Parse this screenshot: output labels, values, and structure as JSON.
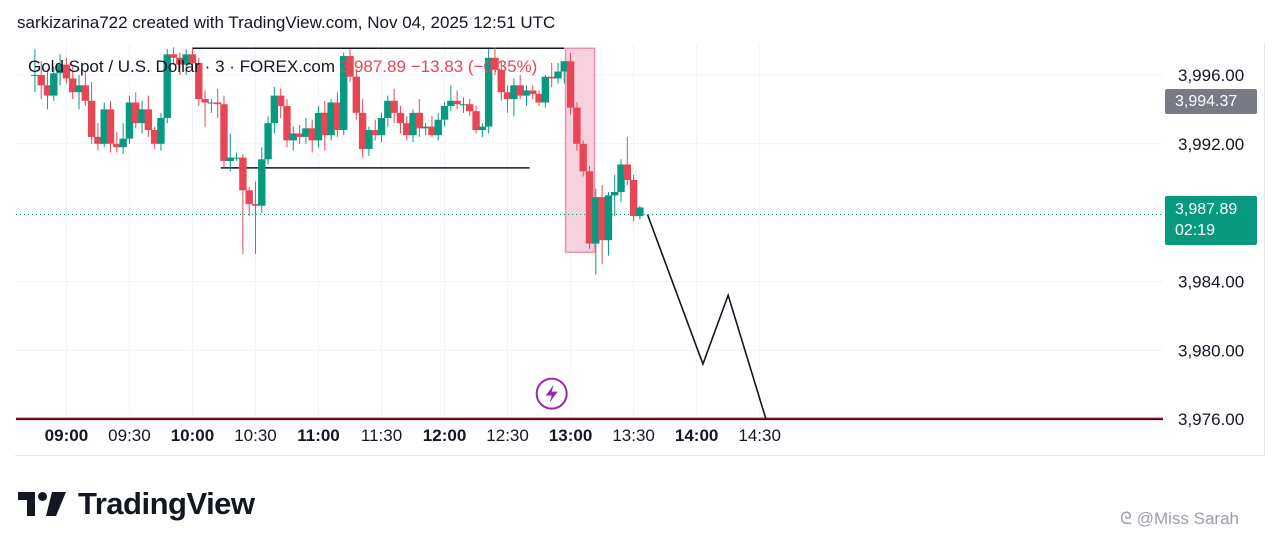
{
  "caption": "sarkizarina722 created with TradingView.com, Nov 04, 2025 12:51 UTC",
  "legend": {
    "symbol": "Gold Spot / U.S. Dollar · 3 · FOREX.com",
    "last": "3,987.89",
    "change": "−13.83 (−0.35%)"
  },
  "badges": {
    "marker_price": "3,994.37",
    "last_price": "3,987.89",
    "countdown": "02:19"
  },
  "brand": {
    "name": "TradingView"
  },
  "watermark": "@Miss Sarah",
  "colors": {
    "up": "#089981",
    "down": "#e84655",
    "highlight": "#f5c2d3",
    "accent": "#9c27b0",
    "grid": "#f0f3fa"
  },
  "chart_data": {
    "type": "candlestick",
    "y_axis": {
      "range": [
        3975.95,
        3997.8
      ],
      "ticks": [
        3996,
        3992,
        3984,
        3980,
        3976
      ],
      "tick_labels": [
        "3,996.00",
        "3,992.00",
        "3,984.00",
        "3,980.00",
        "3,976.00"
      ]
    },
    "x_axis": {
      "range": [
        -8,
        174
      ],
      "ticks": [
        0,
        10,
        20,
        30,
        40,
        50,
        60,
        70,
        80,
        90,
        100,
        110
      ],
      "tick_labels": [
        "09:00",
        "09:30",
        "10:00",
        "10:30",
        "11:00",
        "11:30",
        "12:00",
        "12:30",
        "13:00",
        "13:30",
        "14:00",
        "14:30"
      ],
      "bold": [
        true,
        false,
        true,
        false,
        true,
        false,
        true,
        false,
        true,
        false,
        true,
        false
      ]
    },
    "candles": [
      [
        -5,
        3996,
        3997.5,
        3995,
        3996
      ],
      [
        -4,
        3996,
        3996.8,
        3994.6,
        3995.4
      ],
      [
        -3,
        3995.4,
        3996.3,
        3994,
        3994.8
      ],
      [
        -2,
        3994.8,
        3996.5,
        3994.5,
        3996.1
      ],
      [
        -1,
        3996.1,
        3997.2,
        3995.4,
        3996.6
      ],
      [
        0,
        3996.6,
        3997,
        3995.5,
        3995.8
      ],
      [
        1,
        3995.8,
        3996.5,
        3994.6,
        3995
      ],
      [
        2,
        3995,
        3996,
        3994,
        3995.4
      ],
      [
        3,
        3995.4,
        3996.2,
        3994.2,
        3994.5
      ],
      [
        4,
        3994.5,
        3995.6,
        3992,
        3992.4
      ],
      [
        5,
        3992.4,
        3993.2,
        3991.6,
        3992
      ],
      [
        6,
        3992,
        3994.4,
        3991.8,
        3994
      ],
      [
        7,
        3994,
        3994.5,
        3991.5,
        3992
      ],
      [
        8,
        3992,
        3992.7,
        3991.5,
        3991.8
      ],
      [
        9,
        3991.8,
        3993.2,
        3991.4,
        3992.3
      ],
      [
        10,
        3992.3,
        3994.8,
        3992,
        3994.4
      ],
      [
        11,
        3994.4,
        3995,
        3992.9,
        3993.2
      ],
      [
        12,
        3993.2,
        3994.5,
        3992.6,
        3994
      ],
      [
        13,
        3994,
        3994.8,
        3992.4,
        3992.8
      ],
      [
        14,
        3992.8,
        3993,
        3991.7,
        3992
      ],
      [
        15,
        3992,
        3993.8,
        3991.6,
        3993.5
      ],
      [
        16,
        3993.5,
        3997.5,
        3993.2,
        3997.2
      ],
      [
        17,
        3997.2,
        3997.6,
        3996.6,
        3997
      ],
      [
        18,
        3997,
        3997.3,
        3996,
        3996.6
      ],
      [
        19,
        3996.6,
        3997.5,
        3996,
        3997.2
      ],
      [
        20,
        3997.2,
        3997.6,
        3996.3,
        3996.7
      ],
      [
        21,
        3996.7,
        3997,
        3994.2,
        3994.6
      ],
      [
        22,
        3994.6,
        3995.1,
        3993,
        3994.4
      ],
      [
        23,
        3994.4,
        3994.6,
        3993.8,
        3994.4
      ],
      [
        24,
        3994.4,
        3995.2,
        3993.5,
        3994.3
      ],
      [
        25,
        3994.3,
        3994.8,
        3990.6,
        3991
      ],
      [
        26,
        3991,
        3992.6,
        3990.4,
        3991.2
      ],
      [
        27,
        3991.2,
        3991.5,
        3991,
        3991.2
      ],
      [
        28,
        3991.2,
        3991.4,
        3985.6,
        3989.3
      ],
      [
        29,
        3989.3,
        3989.5,
        3987.8,
        3988.5
      ],
      [
        30,
        3988.5,
        3989.8,
        3985.6,
        3988.4
      ],
      [
        31,
        3988.4,
        3991.8,
        3988,
        3991.1
      ],
      [
        32,
        3991.1,
        3993.6,
        3990.8,
        3993.2
      ],
      [
        33,
        3993.2,
        3995.3,
        3992.6,
        3994.8
      ],
      [
        34,
        3994.8,
        3995.2,
        3993.5,
        3994.2
      ],
      [
        35,
        3994.2,
        3994.6,
        3991.8,
        3992.2
      ],
      [
        36,
        3992.2,
        3993,
        3991.6,
        3992.6
      ],
      [
        37,
        3992.6,
        3993.1,
        3992,
        3992.4
      ],
      [
        38,
        3992.4,
        3993.5,
        3992,
        3992.9
      ],
      [
        39,
        3992.9,
        3993.4,
        3991.5,
        3992.2
      ],
      [
        40,
        3992.2,
        3994.2,
        3991.8,
        3993.8
      ],
      [
        41,
        3993.8,
        3994.5,
        3991.6,
        3992.5
      ],
      [
        42,
        3992.5,
        3994.6,
        3992.2,
        3994.4
      ],
      [
        43,
        3994.4,
        3995,
        3992.4,
        3992.8
      ],
      [
        44,
        3992.8,
        3997.3,
        3992.5,
        3997.1
      ],
      [
        45,
        3997.1,
        3997.5,
        3995.6,
        3995.9
      ],
      [
        46,
        3995.9,
        3996.3,
        3993.4,
        3993.8
      ],
      [
        47,
        3993.8,
        3994.6,
        3991.2,
        3991.7
      ],
      [
        48,
        3991.7,
        3993,
        3991.3,
        3992.8
      ],
      [
        49,
        3992.8,
        3993.4,
        3992.2,
        3992.5
      ],
      [
        50,
        3992.5,
        3993.8,
        3992.1,
        3993.5
      ],
      [
        51,
        3993.5,
        3994.8,
        3993,
        3994.5
      ],
      [
        52,
        3994.5,
        3995.2,
        3993.2,
        3993.8
      ],
      [
        53,
        3993.8,
        3994.2,
        3992.6,
        3993.2
      ],
      [
        54,
        3993.2,
        3993.6,
        3992.2,
        3992.5
      ],
      [
        55,
        3992.5,
        3994,
        3992.1,
        3993.8
      ],
      [
        56,
        3993.8,
        3994.6,
        3992.4,
        3992.9
      ],
      [
        57,
        3992.9,
        3993.2,
        3992.5,
        3993
      ],
      [
        58,
        3993,
        3993.6,
        3992.4,
        3992.5
      ],
      [
        59,
        3992.5,
        3993.8,
        3992.2,
        3993.4
      ],
      [
        60,
        3993.4,
        3994.4,
        3993,
        3994.2
      ],
      [
        61,
        3994.2,
        3995.4,
        3993.9,
        3994.5
      ],
      [
        62,
        3994.5,
        3995.1,
        3994,
        3994.3
      ],
      [
        63,
        3994.3,
        3994.7,
        3993.8,
        3994.3
      ],
      [
        64,
        3994.3,
        3994.6,
        3993.6,
        3993.9
      ],
      [
        65,
        3993.9,
        3994.2,
        3992.6,
        3992.8
      ],
      [
        66,
        3992.8,
        3993.2,
        3992.4,
        3993
      ],
      [
        67,
        3993,
        3997.5,
        3992.6,
        3997
      ],
      [
        68,
        3997,
        3997.6,
        3996,
        3996.3
      ],
      [
        69,
        3996.3,
        3996.8,
        3994.5,
        3995
      ],
      [
        70,
        3995,
        3995.4,
        3993.8,
        3994.6
      ],
      [
        71,
        3994.6,
        3995.8,
        3993.6,
        3995.4
      ],
      [
        72,
        3995.4,
        3996,
        3994.6,
        3994.8
      ],
      [
        73,
        3994.8,
        3995.4,
        3994.2,
        3995.1
      ],
      [
        74,
        3995.1,
        3995.4,
        3994.6,
        3994.9
      ],
      [
        75,
        3994.9,
        3995.1,
        3994.2,
        3994.4
      ],
      [
        76,
        3994.4,
        3996,
        3994.1,
        3995.9
      ],
      [
        77,
        3995.9,
        3996.7,
        3995.3,
        3995.8
      ],
      [
        78,
        3995.8,
        3996.7,
        3995.5,
        3996.2
      ],
      [
        79,
        3996.2,
        3996.8,
        3995.5,
        3996.8
      ],
      [
        80,
        3996.8,
        3997.3,
        3993.7,
        3994.1
      ],
      [
        81,
        3994.1,
        3994.4,
        3991.6,
        3992
      ],
      [
        82,
        3992,
        3992.2,
        3990.1,
        3990.4
      ],
      [
        83,
        3990.4,
        3990.7,
        3985.9,
        3986.2
      ],
      [
        84,
        3986.2,
        3989.4,
        3984.4,
        3988.9
      ],
      [
        85,
        3988.9,
        3989.6,
        3985,
        3986.4
      ],
      [
        86,
        3986.4,
        3989.2,
        3985.5,
        3989
      ],
      [
        87,
        3989,
        3990.2,
        3987.8,
        3989.2
      ],
      [
        88,
        3989.2,
        3991.1,
        3988.6,
        3990.8
      ],
      [
        89,
        3990.8,
        3992.4,
        3989.6,
        3989.9
      ],
      [
        90,
        3989.9,
        3990.2,
        3987.5,
        3987.8
      ],
      [
        91,
        3987.8,
        3988.4,
        3987.6,
        3988.3
      ]
    ],
    "series": [
      {
        "name": "",
        "type": "line",
        "points": [
          [
            92.2,
            3987.89
          ],
          [
            101,
            3979.2
          ],
          [
            105,
            3983.2
          ],
          [
            111,
            3976
          ]
        ]
      }
    ],
    "last_price_line": 3987.89,
    "highlight_box": {
      "x": [
        79.2,
        83.8
      ],
      "y": [
        3997.55,
        3985.7
      ]
    },
    "range_lines": [
      {
        "x": [
          20,
          79
        ],
        "y": 3997.55
      },
      {
        "x": [
          24.5,
          73.5
        ],
        "y": 3990.6
      }
    ],
    "support_line": {
      "x": [
        -8,
        174
      ],
      "y": 3976
    },
    "event_marker": {
      "x": 77,
      "y": 3976.9
    }
  }
}
